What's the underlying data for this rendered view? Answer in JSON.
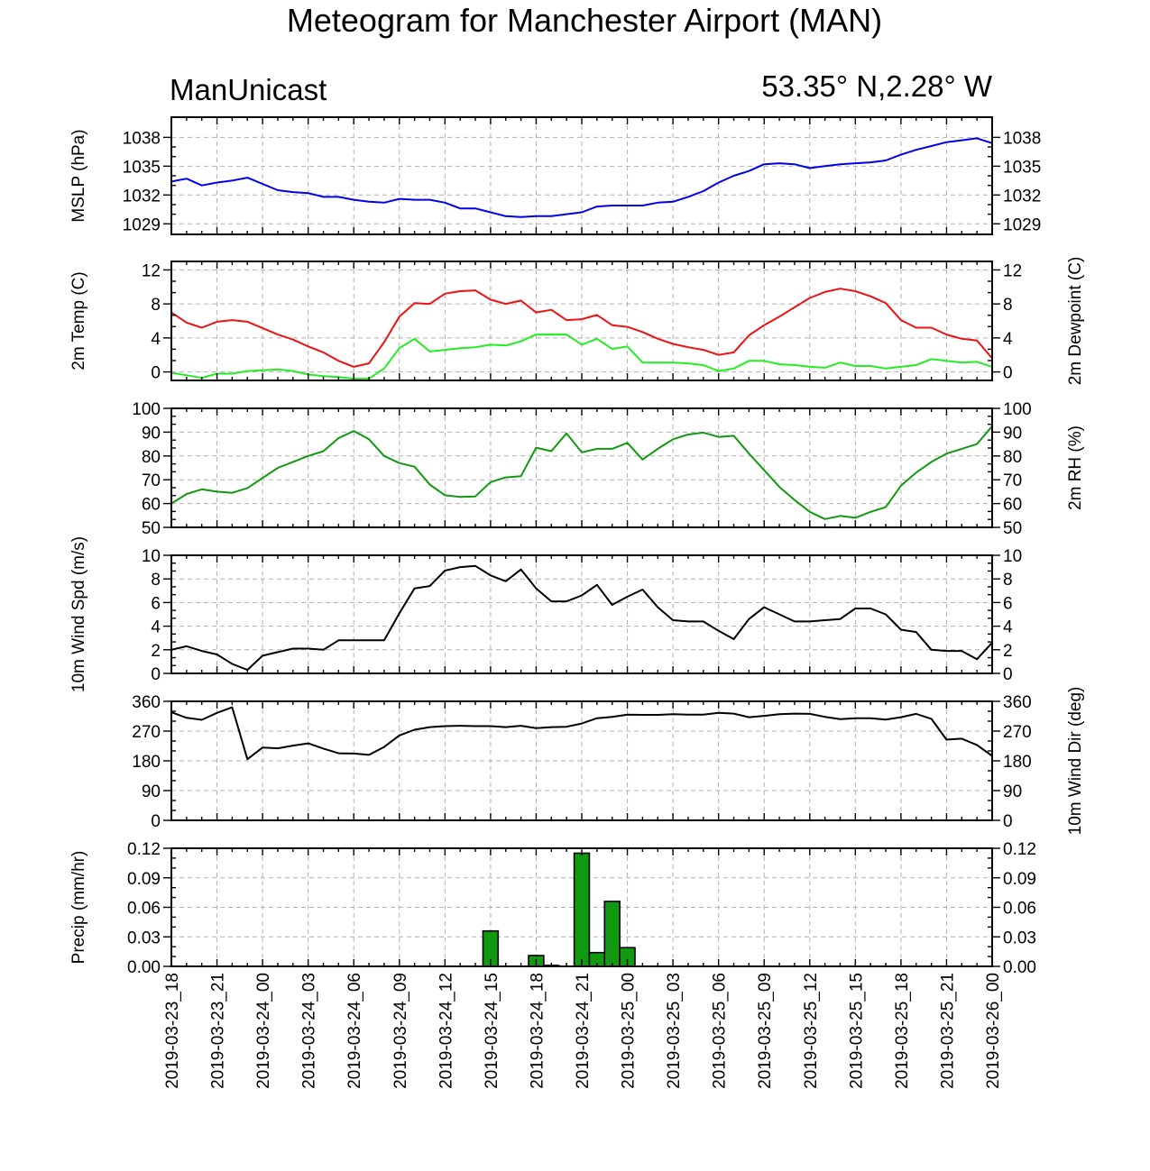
{
  "title": "Meteogram for Manchester Airport (MAN)",
  "left_header": "ManUnicast",
  "right_header": "53.35° N,2.28° W",
  "colors": {
    "mslp": "#0000ee",
    "temp": "#ee1111",
    "dewpoint": "#22ee22",
    "rh": "#119911",
    "wind": "#000000",
    "precip_fill": "#119911"
  },
  "chart_data": {
    "type": "line",
    "x_labels": [
      "2019-03-23_18",
      "2019-03-23_21",
      "2019-03-24_00",
      "2019-03-24_03",
      "2019-03-24_06",
      "2019-03-24_09",
      "2019-03-24_12",
      "2019-03-24_15",
      "2019-03-24_18",
      "2019-03-24_21",
      "2019-03-25_00",
      "2019-03-25_03",
      "2019-03-25_06",
      "2019-03-25_09",
      "2019-03-25_12",
      "2019-03-25_15",
      "2019-03-25_18",
      "2019-03-25_21",
      "2019-03-26_00"
    ],
    "x_hours_range": [
      0,
      54
    ],
    "panels": [
      {
        "id": "mslp",
        "left_label": "MSLP (hPa)",
        "right_label": "",
        "ylim": [
          1027.9,
          1040.1
        ],
        "yticks": [
          1029,
          1032,
          1035,
          1038
        ],
        "type": "line",
        "series": [
          {
            "color_key": "mslp",
            "x": [
              0,
              1,
              2,
              3,
              4,
              5,
              7,
              8,
              9,
              10,
              11,
              12,
              13,
              14,
              15,
              16,
              17,
              18,
              19,
              20,
              21,
              22,
              23,
              24,
              25,
              26,
              27,
              28,
              29,
              30,
              31,
              32,
              33,
              34,
              35,
              36,
              37,
              38,
              39,
              40,
              41,
              42,
              43,
              44,
              45,
              46,
              47,
              48,
              49,
              50,
              51,
              52,
              53,
              54
            ],
            "y": [
              1033.4,
              1033.7,
              1033.0,
              1033.3,
              1033.5,
              1033.8,
              1032.5,
              1032.3,
              1032.2,
              1031.8,
              1031.8,
              1031.5,
              1031.3,
              1031.2,
              1031.6,
              1031.5,
              1031.5,
              1031.2,
              1030.6,
              1030.6,
              1030.2,
              1029.8,
              1029.7,
              1029.8,
              1029.8,
              1030.0,
              1030.2,
              1030.8,
              1030.9,
              1030.9,
              1030.9,
              1031.2,
              1031.3,
              1031.8,
              1032.4,
              1033.3,
              1034.0,
              1034.5,
              1035.2,
              1035.3,
              1035.2,
              1034.8,
              1035.0,
              1035.2,
              1035.3,
              1035.4,
              1035.6,
              1036.2,
              1036.7,
              1037.1,
              1037.5,
              1037.7,
              1037.9,
              1037.4
            ]
          }
        ]
      },
      {
        "id": "temp",
        "left_label": "2m Temp (C)",
        "right_label": "2m Dewpoint (C)",
        "ylim": [
          -1.0,
          13.0
        ],
        "yticks": [
          0,
          4,
          8,
          12
        ],
        "type": "line",
        "series": [
          {
            "color_key": "temp",
            "x": [
              0,
              1,
              2,
              3,
              4,
              5,
              7,
              8,
              9,
              10,
              11,
              12,
              13,
              14,
              15,
              16,
              17,
              18,
              19,
              20,
              21,
              22,
              23,
              24,
              25,
              26,
              27,
              28,
              29,
              30,
              31,
              32,
              33,
              34,
              35,
              36,
              37,
              38,
              39,
              40,
              41,
              42,
              43,
              44,
              45,
              46,
              47,
              48,
              49,
              50,
              51,
              52,
              53,
              54
            ],
            "y": [
              7.0,
              5.8,
              5.2,
              5.9,
              6.1,
              5.9,
              4.4,
              3.8,
              3.0,
              2.3,
              1.3,
              0.6,
              1.0,
              3.5,
              6.5,
              8.1,
              8.0,
              9.2,
              9.5,
              9.6,
              8.5,
              8.0,
              8.4,
              7.0,
              7.3,
              6.1,
              6.2,
              6.7,
              5.5,
              5.3,
              4.7,
              3.9,
              3.3,
              2.9,
              2.6,
              2.0,
              2.3,
              4.3,
              5.5,
              6.5,
              7.6,
              8.7,
              9.4,
              9.8,
              9.5,
              8.9,
              8.1,
              6.1,
              5.2,
              5.2,
              4.4,
              3.9,
              3.7,
              1.6
            ]
          },
          {
            "color_key": "dewpoint",
            "x": [
              0,
              1,
              2,
              3,
              4,
              5,
              7,
              8,
              9,
              10,
              11,
              12,
              13,
              14,
              15,
              16,
              17,
              18,
              19,
              20,
              21,
              22,
              23,
              24,
              25,
              26,
              27,
              28,
              29,
              30,
              31,
              32,
              33,
              34,
              35,
              36,
              37,
              38,
              39,
              40,
              41,
              42,
              43,
              44,
              45,
              46,
              47,
              48,
              49,
              50,
              51,
              52,
              53,
              54
            ],
            "y": [
              -0.1,
              -0.4,
              -0.7,
              -0.2,
              -0.2,
              0.1,
              0.3,
              0.1,
              -0.3,
              -0.5,
              -0.6,
              -0.8,
              -0.8,
              0.4,
              2.8,
              3.9,
              2.4,
              2.6,
              2.8,
              2.9,
              3.2,
              3.1,
              3.6,
              4.4,
              4.4,
              4.4,
              3.2,
              3.9,
              2.7,
              3.0,
              1.1,
              1.1,
              1.1,
              1.0,
              0.8,
              0.1,
              0.4,
              1.3,
              1.3,
              0.9,
              0.8,
              0.6,
              0.5,
              1.1,
              0.7,
              0.7,
              0.4,
              0.6,
              0.8,
              1.5,
              1.3,
              1.1,
              1.2,
              0.6
            ]
          }
        ]
      },
      {
        "id": "rh",
        "left_label": "",
        "right_label": "2m RH (%)",
        "ylim": [
          50,
          100
        ],
        "yticks": [
          50,
          60,
          70,
          80,
          90,
          100
        ],
        "type": "line",
        "series": [
          {
            "color_key": "rh",
            "x": [
              0,
              1,
              2,
              3,
              4,
              5,
              7,
              8,
              9,
              10,
              11,
              12,
              13,
              14,
              15,
              16,
              17,
              18,
              19,
              20,
              21,
              22,
              23,
              24,
              25,
              26,
              27,
              28,
              29,
              30,
              31,
              32,
              33,
              34,
              35,
              36,
              37,
              38,
              39,
              40,
              41,
              42,
              43,
              44,
              45,
              46,
              47,
              48,
              49,
              50,
              51,
              52,
              53,
              54
            ],
            "y": [
              60,
              64,
              66,
              65,
              64.5,
              66.5,
              75,
              77.5,
              80,
              82,
              87.5,
              90.5,
              87,
              80,
              77,
              75.5,
              68,
              63.5,
              62.8,
              63,
              69,
              71,
              71.5,
              83.5,
              82,
              89.5,
              81.5,
              83,
              83,
              85.5,
              78.5,
              83,
              87,
              89,
              89.8,
              88,
              88.5,
              81,
              74,
              67,
              61.5,
              56.5,
              53.5,
              54.8,
              54,
              56.5,
              58.5,
              67.5,
              73,
              77.5,
              81,
              83,
              85,
              92.5
            ]
          }
        ]
      },
      {
        "id": "wind_speed",
        "left_label": "10m Wind Spd (m/s)",
        "right_label": "",
        "ylim": [
          0,
          10
        ],
        "yticks": [
          0,
          2,
          4,
          6,
          8,
          10
        ],
        "type": "line",
        "series": [
          {
            "color_key": "wind",
            "x": [
              0,
              1,
              2,
              3,
              4,
              5,
              6,
              7,
              8,
              9,
              10,
              11,
              12,
              13,
              14,
              15,
              16,
              17,
              18,
              19,
              20,
              21,
              22,
              23,
              24,
              25,
              26,
              27,
              28,
              29,
              30,
              31,
              32,
              33,
              34,
              35,
              36,
              37,
              38,
              39,
              40,
              41,
              42,
              43,
              44,
              45,
              46,
              47,
              48,
              49,
              50,
              51,
              52,
              53,
              54
            ],
            "y": [
              2.0,
              2.3,
              1.9,
              1.6,
              0.8,
              0.3,
              1.5,
              1.8,
              2.1,
              2.1,
              2.0,
              2.8,
              2.8,
              2.8,
              2.8,
              5.1,
              7.2,
              7.4,
              8.7,
              9.0,
              9.1,
              8.3,
              7.8,
              8.8,
              7.2,
              6.1,
              6.1,
              6.6,
              7.5,
              5.8,
              6.5,
              7.1,
              5.6,
              4.5,
              4.4,
              4.4,
              3.6,
              2.9,
              4.6,
              5.6,
              5.0,
              4.4,
              4.4,
              4.5,
              4.6,
              5.5,
              5.5,
              5.0,
              3.7,
              3.5,
              2.0,
              1.9,
              1.9,
              1.2,
              2.6
            ]
          }
        ]
      },
      {
        "id": "wind_dir",
        "left_label": "",
        "right_label": "10m Wind Dir (deg)",
        "ylim": [
          0,
          360
        ],
        "yticks": [
          0,
          90,
          180,
          270,
          360
        ],
        "type": "line",
        "series": [
          {
            "color_key": "wind",
            "x": [
              0,
              1,
              2,
              3,
              4,
              5,
              6,
              7,
              8,
              9,
              10,
              11,
              12,
              13,
              14,
              15,
              16,
              17,
              18,
              19,
              20,
              21,
              22,
              23,
              24,
              25,
              26,
              27,
              28,
              29,
              30,
              31,
              32,
              33,
              34,
              35,
              36,
              37,
              38,
              39,
              40,
              41,
              42,
              43,
              44,
              45,
              46,
              47,
              48,
              49,
              50,
              51,
              52,
              53,
              54
            ],
            "y": [
              327,
              310,
              304,
              325,
              342,
              185,
              220,
              218,
              226,
              233,
              217,
              203,
              202,
              198,
              222,
              257,
              274,
              282,
              285,
              286,
              285,
              285,
              282,
              286,
              279,
              282,
              283,
              293,
              309,
              313,
              320,
              319,
              319,
              321,
              320,
              320,
              325,
              323,
              312,
              316,
              321,
              323,
              322,
              313,
              306,
              309,
              309,
              305,
              312,
              322,
              307,
              244,
              247,
              228,
              195
            ]
          }
        ]
      },
      {
        "id": "precip",
        "left_label": "Precip (mm/hr)",
        "right_label": "",
        "ylim": [
          0,
          0.12
        ],
        "yticks": [
          0.0,
          0.03,
          0.06,
          0.09,
          0.12
        ],
        "ytick_decimals": 2,
        "type": "bar",
        "series": [
          {
            "color_key": "precip_fill",
            "x": [
              21,
              24,
              25,
              27,
              28,
              29,
              30
            ],
            "y": [
              0.036,
              0.011,
              0.001,
              0.115,
              0.014,
              0.066,
              0.019
            ]
          }
        ]
      }
    ]
  }
}
